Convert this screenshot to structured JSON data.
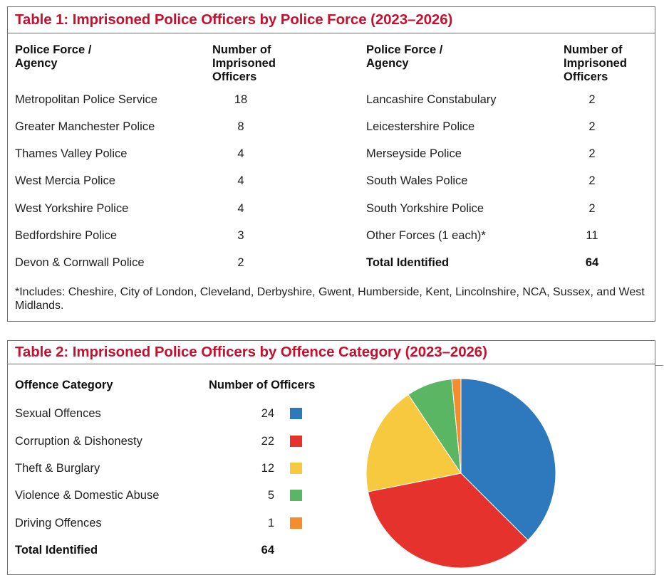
{
  "table1": {
    "title": "Table 1: Imprisoned Police Officers by Police Force (2023–2026)",
    "col_force_line1": "Police Force /",
    "col_force_line2": "Agency",
    "col_num_line1": "Number of",
    "col_num_line2": "Imprisoned",
    "col_num_line3": "Officers",
    "left_rows": [
      {
        "force": "Metropolitan Police Service",
        "count": "18"
      },
      {
        "force": "Greater Manchester Police",
        "count": "8"
      },
      {
        "force": "Thames Valley Police",
        "count": "4"
      },
      {
        "force": "West Mercia Police",
        "count": "4"
      },
      {
        "force": "West Yorkshire Police",
        "count": "4"
      },
      {
        "force": "Bedfordshire Police",
        "count": "3"
      },
      {
        "force": "Devon & Cornwall Police",
        "count": "2"
      }
    ],
    "right_rows": [
      {
        "force": "Lancashire Constabulary",
        "count": "2"
      },
      {
        "force": "Leicestershire Police",
        "count": "2"
      },
      {
        "force": "Merseyside Police",
        "count": "2"
      },
      {
        "force": "South Wales Police",
        "count": "2"
      },
      {
        "force": "South Yorkshire Police",
        "count": "2"
      },
      {
        "force": "Other Forces (1 each)*",
        "count": "11"
      }
    ],
    "total_label": "Total Identified",
    "total_value": "64",
    "footnote": "*Includes: Cheshire, City of London, Cleveland, Derbyshire, Gwent, Humberside, Kent, Lincolnshire, NCA, Sussex, and West Midlands."
  },
  "table2": {
    "title": "Table 2: Imprisoned Police Officers by Offence Category (2023–2026)",
    "col_category": "Offence Category",
    "col_number": "Number of Officers",
    "rows": [
      {
        "category": "Sexual Offences",
        "count": "24",
        "color": "#2e78bd"
      },
      {
        "category": "Corruption & Dishonesty",
        "count": "22",
        "color": "#e5322d"
      },
      {
        "category": "Theft & Burglary",
        "count": "12",
        "color": "#f6c93e"
      },
      {
        "category": "Violence & Domestic Abuse",
        "count": "5",
        "color": "#5bb664"
      },
      {
        "category": "Driving Offences",
        "count": "1",
        "color": "#f48d2e"
      }
    ],
    "total_label": "Total Identified",
    "total_value": "64"
  },
  "chart_data": {
    "type": "pie",
    "categories": [
      "Sexual Offences",
      "Corruption & Dishonesty",
      "Theft & Burglary",
      "Violence & Domestic Abuse",
      "Driving Offences"
    ],
    "values": [
      24,
      22,
      12,
      5,
      1
    ],
    "colors": [
      "#2e78bd",
      "#e5322d",
      "#f6c93e",
      "#5bb664",
      "#f48d2e"
    ],
    "title": "",
    "legend": "left"
  }
}
